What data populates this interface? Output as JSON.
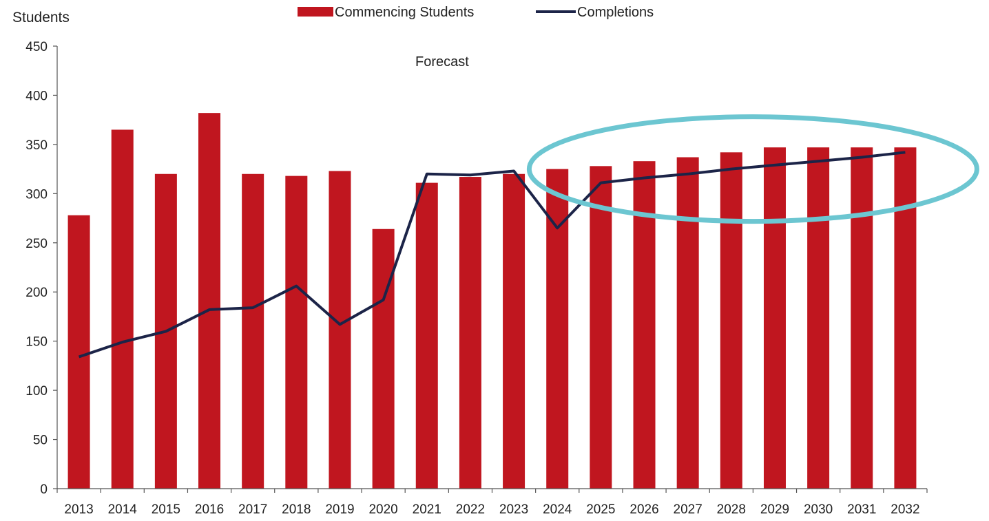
{
  "chart_data": {
    "type": "bar",
    "ylabel": "Students",
    "ylim": [
      0,
      450
    ],
    "yticks": [
      0,
      50,
      100,
      150,
      200,
      250,
      300,
      350,
      400,
      450
    ],
    "categories": [
      "2013",
      "2014",
      "2015",
      "2016",
      "2017",
      "2018",
      "2019",
      "2020",
      "2021",
      "2022",
      "2023",
      "2024",
      "2025",
      "2026",
      "2027",
      "2028",
      "2029",
      "2030",
      "2031",
      "2032"
    ],
    "annotation": "Forecast",
    "grid": false,
    "legend_position": "top",
    "series": [
      {
        "name": "Commencing Students",
        "type": "bar",
        "color": "#c0161f",
        "values": [
          278,
          365,
          320,
          382,
          320,
          318,
          323,
          264,
          311,
          317,
          320,
          325,
          328,
          333,
          337,
          342,
          347,
          347,
          347,
          347
        ]
      },
      {
        "name": "Completions",
        "type": "line",
        "color": "#1c2448",
        "values": [
          134,
          149,
          160,
          182,
          184,
          206,
          167,
          192,
          320,
          319,
          323,
          265,
          311,
          316,
          320,
          325,
          329,
          333,
          337,
          342
        ]
      }
    ],
    "highlight": {
      "shape": "ellipse",
      "color": "#6cc6d1",
      "categories": [
        "2025",
        "2032"
      ]
    }
  }
}
